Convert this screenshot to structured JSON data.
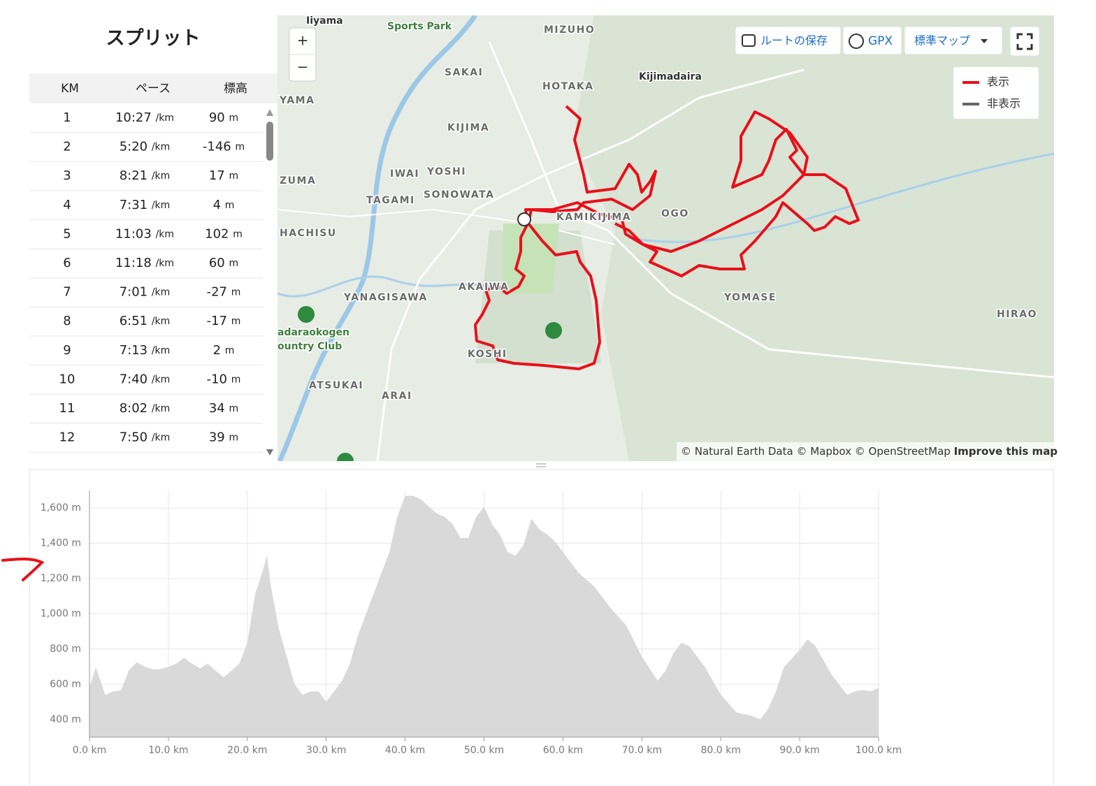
{
  "splits": {
    "title": "スプリット",
    "columns": [
      "KM",
      "ペース",
      "標高"
    ],
    "rows": [
      {
        "km": 1,
        "pace": "10:27",
        "pace_unit": "/km",
        "elevation": 90,
        "elevation_unit": "m"
      },
      {
        "km": 2,
        "pace": "5:20",
        "pace_unit": "/km",
        "elevation": -146,
        "elevation_unit": "m"
      },
      {
        "km": 3,
        "pace": "8:21",
        "pace_unit": "/km",
        "elevation": 17,
        "elevation_unit": "m"
      },
      {
        "km": 4,
        "pace": "7:31",
        "pace_unit": "/km",
        "elevation": 4,
        "elevation_unit": "m"
      },
      {
        "km": 5,
        "pace": "11:03",
        "pace_unit": "/km",
        "elevation": 102,
        "elevation_unit": "m"
      },
      {
        "km": 6,
        "pace": "11:18",
        "pace_unit": "/km",
        "elevation": 60,
        "elevation_unit": "m"
      },
      {
        "km": 7,
        "pace": "7:01",
        "pace_unit": "/km",
        "elevation": -27,
        "elevation_unit": "m"
      },
      {
        "km": 8,
        "pace": "6:51",
        "pace_unit": "/km",
        "elevation": -17,
        "elevation_unit": "m"
      },
      {
        "km": 9,
        "pace": "7:13",
        "pace_unit": "/km",
        "elevation": 2,
        "elevation_unit": "m"
      },
      {
        "km": 10,
        "pace": "7:40",
        "pace_unit": "/km",
        "elevation": -10,
        "elevation_unit": "m"
      },
      {
        "km": 11,
        "pace": "8:02",
        "pace_unit": "/km",
        "elevation": 34,
        "elevation_unit": "m"
      },
      {
        "km": 12,
        "pace": "7:50",
        "pace_unit": "/km",
        "elevation": 39,
        "elevation_unit": "m"
      }
    ]
  },
  "map": {
    "buttons": {
      "save_route": "ルートの保存",
      "gpx": "GPX",
      "map_style": "標準マップ",
      "zoom_in": "+",
      "zoom_out": "−"
    },
    "legend": {
      "shown": "表示",
      "hidden": "非表示"
    },
    "attribution": {
      "text": "© Natural Earth Data © Mapbox © OpenStreetMap",
      "link": "Improve this map"
    },
    "labels": [
      "Iiyama",
      "Sports Park",
      "MIZUHO",
      "SAKAI",
      "HOTAKA",
      "Kijimadaira",
      "YAMA",
      "KIJIMA",
      "IWAI",
      "YOSHI",
      "ZUMA",
      "SONOWATA",
      "TAGAMI",
      "KAMIKIJIMA",
      "OGO",
      "HACHISU",
      "AKAIWA",
      "YANAGISAWA",
      "YOMASE",
      "HIRAO",
      "adaraokogen",
      "ountry Club",
      "KOSHI",
      "ATSUKAI",
      "ARAI"
    ]
  },
  "chart_data": {
    "type": "area",
    "x": [
      0,
      0.8,
      2,
      3,
      4,
      5,
      6,
      7,
      8,
      9,
      10,
      11,
      12,
      13,
      14,
      15,
      16,
      17,
      18,
      19,
      20,
      21,
      22,
      22.5,
      23,
      24,
      25,
      26,
      27,
      28,
      29,
      30,
      31,
      32,
      33,
      34,
      35,
      36,
      37,
      38,
      39,
      40,
      41,
      42,
      43,
      44,
      45,
      46,
      47,
      48,
      49,
      50,
      51,
      52,
      53,
      54,
      55,
      56,
      57,
      58,
      59,
      60,
      62,
      64,
      66,
      68,
      70,
      72,
      73,
      74,
      75,
      76,
      78,
      80,
      82,
      84,
      85,
      86,
      87,
      88,
      90,
      91,
      92,
      94,
      96,
      97,
      98,
      99,
      100
    ],
    "values": [
      580,
      697,
      540,
      560,
      565,
      680,
      725,
      700,
      685,
      685,
      700,
      717,
      750,
      717,
      690,
      717,
      677,
      640,
      677,
      717,
      836,
      1113,
      1250,
      1330,
      1153,
      915,
      756,
      600,
      540,
      560,
      560,
      500,
      560,
      620,
      717,
      875,
      994,
      1113,
      1232,
      1350,
      1550,
      1670,
      1670,
      1650,
      1608,
      1570,
      1550,
      1510,
      1430,
      1430,
      1550,
      1608,
      1510,
      1450,
      1350,
      1330,
      1390,
      1540,
      1480,
      1450,
      1410,
      1350,
      1232,
      1153,
      1034,
      935,
      756,
      620,
      677,
      776,
      836,
      816,
      697,
      540,
      440,
      420,
      400,
      460,
      560,
      697,
      796,
      855,
      816,
      657,
      540,
      560,
      567,
      560,
      580
    ],
    "color": "#d9d9d9",
    "xlim": [
      0,
      100
    ],
    "ylim": [
      300,
      1700
    ],
    "xticks": [
      {
        "value": 0,
        "label": "0.0 km"
      },
      {
        "value": 10,
        "label": "10.0 km"
      },
      {
        "value": 20,
        "label": "20.0 km"
      },
      {
        "value": 30,
        "label": "30.0 km"
      },
      {
        "value": 40,
        "label": "40.0 km"
      },
      {
        "value": 50,
        "label": "50.0 km"
      },
      {
        "value": 60,
        "label": "60.0 km"
      },
      {
        "value": 70,
        "label": "70.0 km"
      },
      {
        "value": 80,
        "label": "80.0 km"
      },
      {
        "value": 90,
        "label": "90.0 km"
      },
      {
        "value": 100,
        "label": "100.0 km"
      }
    ],
    "yticks": [
      {
        "value": 400,
        "label": "400 m"
      },
      {
        "value": 600,
        "label": "600 m"
      },
      {
        "value": 800,
        "label": "800 m"
      },
      {
        "value": 1000,
        "label": "1,000 m"
      },
      {
        "value": 1200,
        "label": "1,200 m"
      },
      {
        "value": 1400,
        "label": "1,400 m"
      },
      {
        "value": 1600,
        "label": "1,600 m"
      }
    ],
    "grid": true
  }
}
